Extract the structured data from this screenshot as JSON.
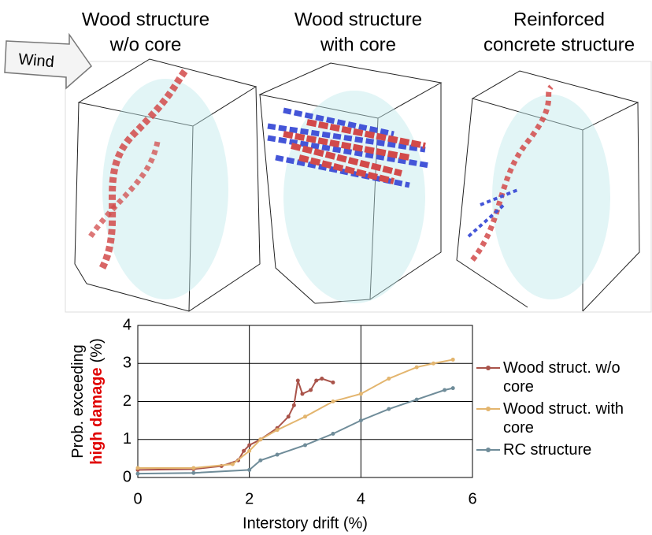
{
  "panels": [
    {
      "title_lines": [
        "Wood structure",
        "w/o core"
      ]
    },
    {
      "title_lines": [
        "Wood structure",
        "with core"
      ]
    },
    {
      "title_lines": [
        "Reinforced",
        "concrete structure"
      ]
    }
  ],
  "wind_label": "Wind",
  "chart_data": {
    "type": "line",
    "xlabel": "Interstory drift (%)",
    "ylabel": "Prob. exceeding",
    "ylabel_highlight": "high damage",
    "ylabel_unit": "(%)",
    "xlim": [
      0,
      6
    ],
    "xticks": [
      0,
      2,
      4,
      6
    ],
    "ylim": [
      0,
      4
    ],
    "yticks": [
      0,
      1,
      2,
      3,
      4
    ],
    "grid": true,
    "series": [
      {
        "name": "Wood struct. w/o core",
        "color": "#a9534a",
        "x": [
          0,
          1,
          1.5,
          1.8,
          1.9,
          2.0,
          2.2,
          2.5,
          2.7,
          2.8,
          2.87,
          2.95,
          3.1,
          3.2,
          3.3,
          3.5
        ],
        "values": [
          0.2,
          0.22,
          0.3,
          0.45,
          0.7,
          0.85,
          1.0,
          1.3,
          1.6,
          1.9,
          2.55,
          2.2,
          2.3,
          2.55,
          2.6,
          2.5
        ]
      },
      {
        "name": "Wood struct. with core",
        "color": "#e3b56e",
        "x": [
          0,
          1,
          1.7,
          2.0,
          2.2,
          2.5,
          3.0,
          3.5,
          4.0,
          4.5,
          5.0,
          5.3,
          5.65
        ],
        "values": [
          0.25,
          0.25,
          0.35,
          0.7,
          1.0,
          1.25,
          1.6,
          2.0,
          2.2,
          2.6,
          2.9,
          3.0,
          3.1
        ]
      },
      {
        "name": "RC structure",
        "color": "#6f8c99",
        "x": [
          0,
          1,
          2.0,
          2.2,
          2.5,
          3.0,
          3.5,
          4.0,
          4.5,
          5.0,
          5.5,
          5.65
        ],
        "values": [
          0.1,
          0.12,
          0.2,
          0.45,
          0.6,
          0.85,
          1.15,
          1.5,
          1.8,
          2.05,
          2.3,
          2.35
        ]
      }
    ]
  }
}
